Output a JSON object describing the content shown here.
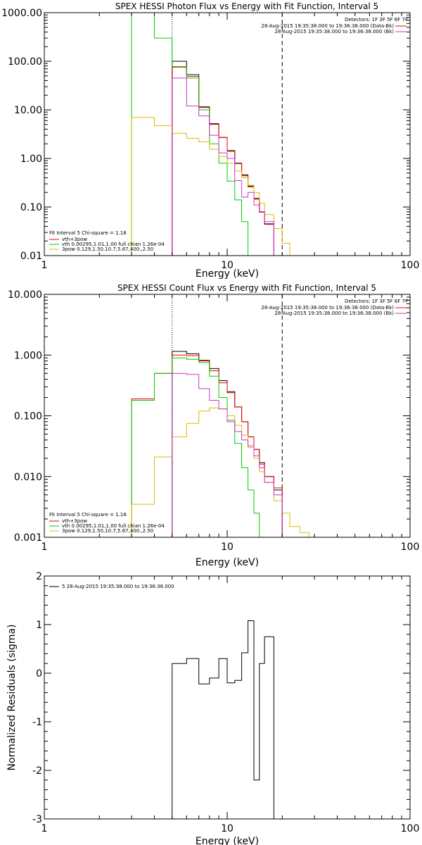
{
  "charts": [
    {
      "type": "line",
      "title": "SPEX HESSI Photon Flux vs Energy with Fit Function, Interval 5",
      "xlabel": "Energy (keV)",
      "x_scale": "log",
      "y_scale": "log",
      "xlim": [
        1,
        100
      ],
      "ylim": [
        0.01,
        1000
      ],
      "x_ticks": [
        {
          "v": 1,
          "t": "1"
        },
        {
          "v": 10,
          "t": "10"
        },
        {
          "v": 100,
          "t": "100"
        }
      ],
      "y_ticks": [
        {
          "v": 0.01,
          "t": "0.01"
        },
        {
          "v": 0.1,
          "t": "0.10"
        },
        {
          "v": 1,
          "t": "1.00"
        },
        {
          "v": 10,
          "t": "10.00"
        },
        {
          "v": 100,
          "t": "100.00"
        },
        {
          "v": 1000,
          "t": "1000.00"
        }
      ],
      "vlines": [
        {
          "x": 5,
          "style": "dotted"
        },
        {
          "x": 20,
          "style": "dashed"
        }
      ],
      "info_lines": [
        "Detectors: 1F 3F 5F 6F 7F",
        "28-Aug-2015 19:35:38.000 to 19:36:38.000 (Data-Bk)",
        "28-Aug-2015 19:35:38.000 to 19:36:38.000 (Bk)"
      ],
      "legend_header": "Fit Interval 5   Chi-square = 1.18",
      "edges": [
        3,
        4,
        5,
        6,
        7,
        8,
        9,
        10,
        11,
        12,
        13,
        14,
        15,
        16,
        18,
        20,
        22,
        25
      ],
      "series": [
        {
          "name": "",
          "color": "#000000",
          "values": [
            null,
            null,
            100,
            53,
            11.5,
            5.2,
            2.7,
            1.45,
            0.8,
            0.46,
            0.27,
            0.15,
            0.08,
            0.045,
            null,
            null,
            null
          ]
        },
        {
          "name": "vth+3pow",
          "color": "#ee0000",
          "values": [
            null,
            null,
            77,
            49,
            11.2,
            5.0,
            2.7,
            1.4,
            0.78,
            0.44,
            0.26,
            0.145,
            0.078,
            0.044,
            null,
            null,
            null
          ]
        },
        {
          "name": "vth 0.00295,1.01,1.00  full chian 1.26e-04",
          "color": "#00cc00",
          "values": [
            1000,
            300,
            75,
            45,
            10,
            2.0,
            0.8,
            0.34,
            0.14,
            0.05,
            0.01,
            null,
            null,
            null,
            null,
            null,
            null
          ]
        },
        {
          "name": "3pow 0.129,1.50,10.7,5.67,400.,2.50",
          "color": "#ddbb00",
          "values": [
            7,
            4.7,
            3.3,
            2.6,
            2.2,
            1.55,
            1.1,
            0.8,
            0.55,
            0.4,
            0.28,
            0.2,
            0.12,
            0.07,
            0.036,
            0.018,
            0.01
          ]
        },
        {
          "name": "",
          "color": "#cc33cc",
          "values": [
            null,
            null,
            45,
            12,
            7.5,
            3.0,
            1.3,
            1.0,
            0.35,
            0.16,
            0.2,
            0.11,
            0.08,
            0.05,
            null,
            null,
            null
          ]
        }
      ]
    },
    {
      "type": "line",
      "title": "SPEX HESSI Count Flux vs Energy with Fit Function, Interval 5",
      "xlabel": "Energy (keV)",
      "x_scale": "log",
      "y_scale": "log",
      "xlim": [
        1,
        100
      ],
      "ylim": [
        0.001,
        10
      ],
      "x_ticks": [
        {
          "v": 1,
          "t": "1"
        },
        {
          "v": 10,
          "t": "10"
        },
        {
          "v": 100,
          "t": "100"
        }
      ],
      "y_ticks": [
        {
          "v": 0.001,
          "t": "0.001"
        },
        {
          "v": 0.01,
          "t": "0.010"
        },
        {
          "v": 0.1,
          "t": "0.100"
        },
        {
          "v": 1,
          "t": "1.000"
        },
        {
          "v": 10,
          "t": "10.000"
        }
      ],
      "vlines": [
        {
          "x": 5,
          "style": "dotted"
        },
        {
          "x": 20,
          "style": "dashed"
        }
      ],
      "info_lines": [
        "Detectors: 1F 3F 5F 6F 7F",
        "28-Aug-2015 19:35:38.000 to 19:36:38.000 (Data-Bk)",
        "28-Aug-2015 19:35:38.000 to 19:36:38.000 (Bk)"
      ],
      "legend_header": "Fit Interval 5   Chi-square = 1.18",
      "edges": [
        3,
        4,
        5,
        6,
        7,
        8,
        9,
        10,
        11,
        12,
        13,
        14,
        15,
        16,
        18,
        20,
        22,
        25,
        28
      ],
      "series": [
        {
          "name": "",
          "color": "#000000",
          "values": [
            null,
            null,
            1.15,
            1.05,
            0.82,
            0.6,
            0.38,
            0.25,
            0.14,
            0.08,
            0.045,
            0.028,
            0.017,
            0.01,
            0.006,
            null,
            null,
            null
          ]
        },
        {
          "name": "vth+3pow",
          "color": "#ee0000",
          "values": [
            0.19,
            0.5,
            1.0,
            0.98,
            0.8,
            0.55,
            0.35,
            0.24,
            0.14,
            0.08,
            0.045,
            0.028,
            0.016,
            0.01,
            0.0065,
            null,
            null,
            null
          ]
        },
        {
          "name": "vth 0.00295,1.01,1.00  full chian 1.26e-04",
          "color": "#00cc00",
          "values": [
            0.18,
            0.5,
            0.9,
            0.85,
            0.75,
            0.45,
            0.2,
            0.085,
            0.035,
            0.014,
            0.006,
            0.0025,
            0.001,
            null,
            null,
            null,
            null,
            null
          ]
        },
        {
          "name": "3pow 0.129,1.50,10.7,5.67,400.,2.50",
          "color": "#ddbb00",
          "values": [
            0.0035,
            0.021,
            0.045,
            0.075,
            0.12,
            0.135,
            0.13,
            0.1,
            0.07,
            0.048,
            0.03,
            0.02,
            0.012,
            0.008,
            0.004,
            0.0025,
            0.0015,
            0.0012
          ]
        },
        {
          "name": "",
          "color": "#cc33cc",
          "values": [
            null,
            null,
            0.5,
            0.48,
            0.28,
            0.18,
            0.13,
            0.08,
            0.055,
            0.04,
            0.032,
            0.022,
            0.014,
            0.008,
            0.005,
            null,
            null,
            null
          ]
        }
      ]
    },
    {
      "type": "line",
      "title": "",
      "xlabel": "Energy (keV)",
      "ylabel": "Normalized Residuals (sigma)",
      "x_scale": "log",
      "y_scale": "linear",
      "xlim": [
        1,
        100
      ],
      "ylim": [
        -3,
        2
      ],
      "x_ticks": [
        {
          "v": 1,
          "t": "1"
        },
        {
          "v": 10,
          "t": "10"
        },
        {
          "v": 100,
          "t": "100"
        }
      ],
      "y_ticks": [
        {
          "v": -3,
          "t": "-3"
        },
        {
          "v": -2,
          "t": "-2"
        },
        {
          "v": -1,
          "t": "-1"
        },
        {
          "v": 0,
          "t": "0"
        },
        {
          "v": 1,
          "t": "1"
        },
        {
          "v": 2,
          "t": "2"
        }
      ],
      "legend_header": "5  28-Aug-2015 19:35:38.000 to 19:36:38.000",
      "edges": [
        5,
        6,
        7,
        8,
        9,
        10,
        11,
        12,
        13,
        14,
        15,
        16,
        18,
        20
      ],
      "series": [
        {
          "name": "",
          "color": "#000000",
          "values": [
            0.2,
            0.3,
            -0.22,
            -0.1,
            0.3,
            -0.2,
            -0.15,
            0.42,
            1.08,
            -2.2,
            0.2,
            0.75,
            null
          ]
        }
      ]
    }
  ]
}
